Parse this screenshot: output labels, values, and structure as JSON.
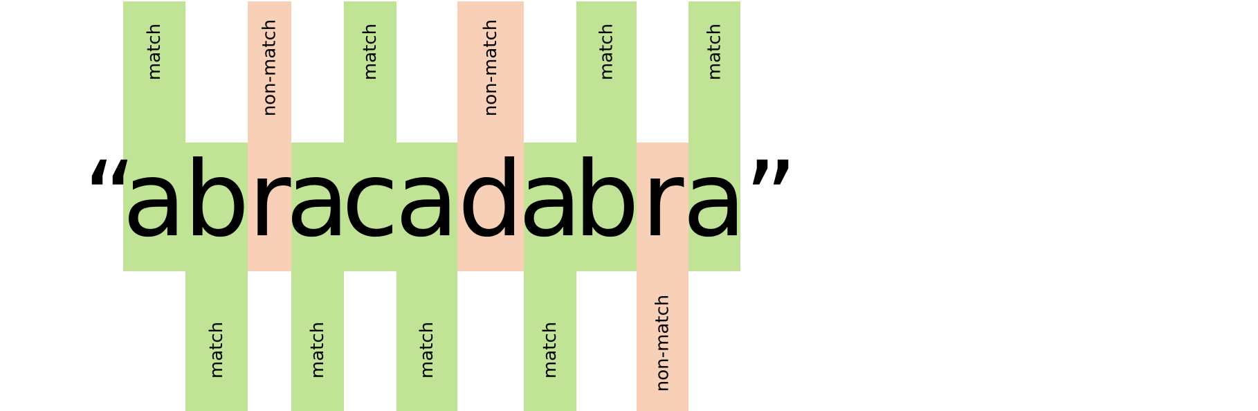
{
  "quotes": {
    "open": "“",
    "close": "”"
  },
  "colors": {
    "match": "#c0e395",
    "non_match": "#f8cfb7",
    "text": "#000000"
  },
  "segments": [
    {
      "text": "a",
      "label": "match",
      "status": "match",
      "side": "top"
    },
    {
      "text": "b",
      "label": "match",
      "status": "match",
      "side": "bottom"
    },
    {
      "text": "r",
      "label": "non-match",
      "status": "non_match",
      "side": "top"
    },
    {
      "text": "a",
      "label": "match",
      "status": "match",
      "side": "bottom"
    },
    {
      "text": "c",
      "label": "match",
      "status": "match",
      "side": "top"
    },
    {
      "text": "a",
      "label": "match",
      "status": "match",
      "side": "bottom"
    },
    {
      "text": "d",
      "label": "non-match",
      "status": "non_match",
      "side": "top"
    },
    {
      "text": "a",
      "label": "match",
      "status": "match",
      "side": "bottom"
    },
    {
      "text": "b",
      "label": "match",
      "status": "match",
      "side": "top"
    },
    {
      "text": "r",
      "label": "non-match",
      "status": "non_match",
      "side": "bottom"
    },
    {
      "text": "a",
      "label": "match",
      "status": "match",
      "side": "top"
    }
  ]
}
